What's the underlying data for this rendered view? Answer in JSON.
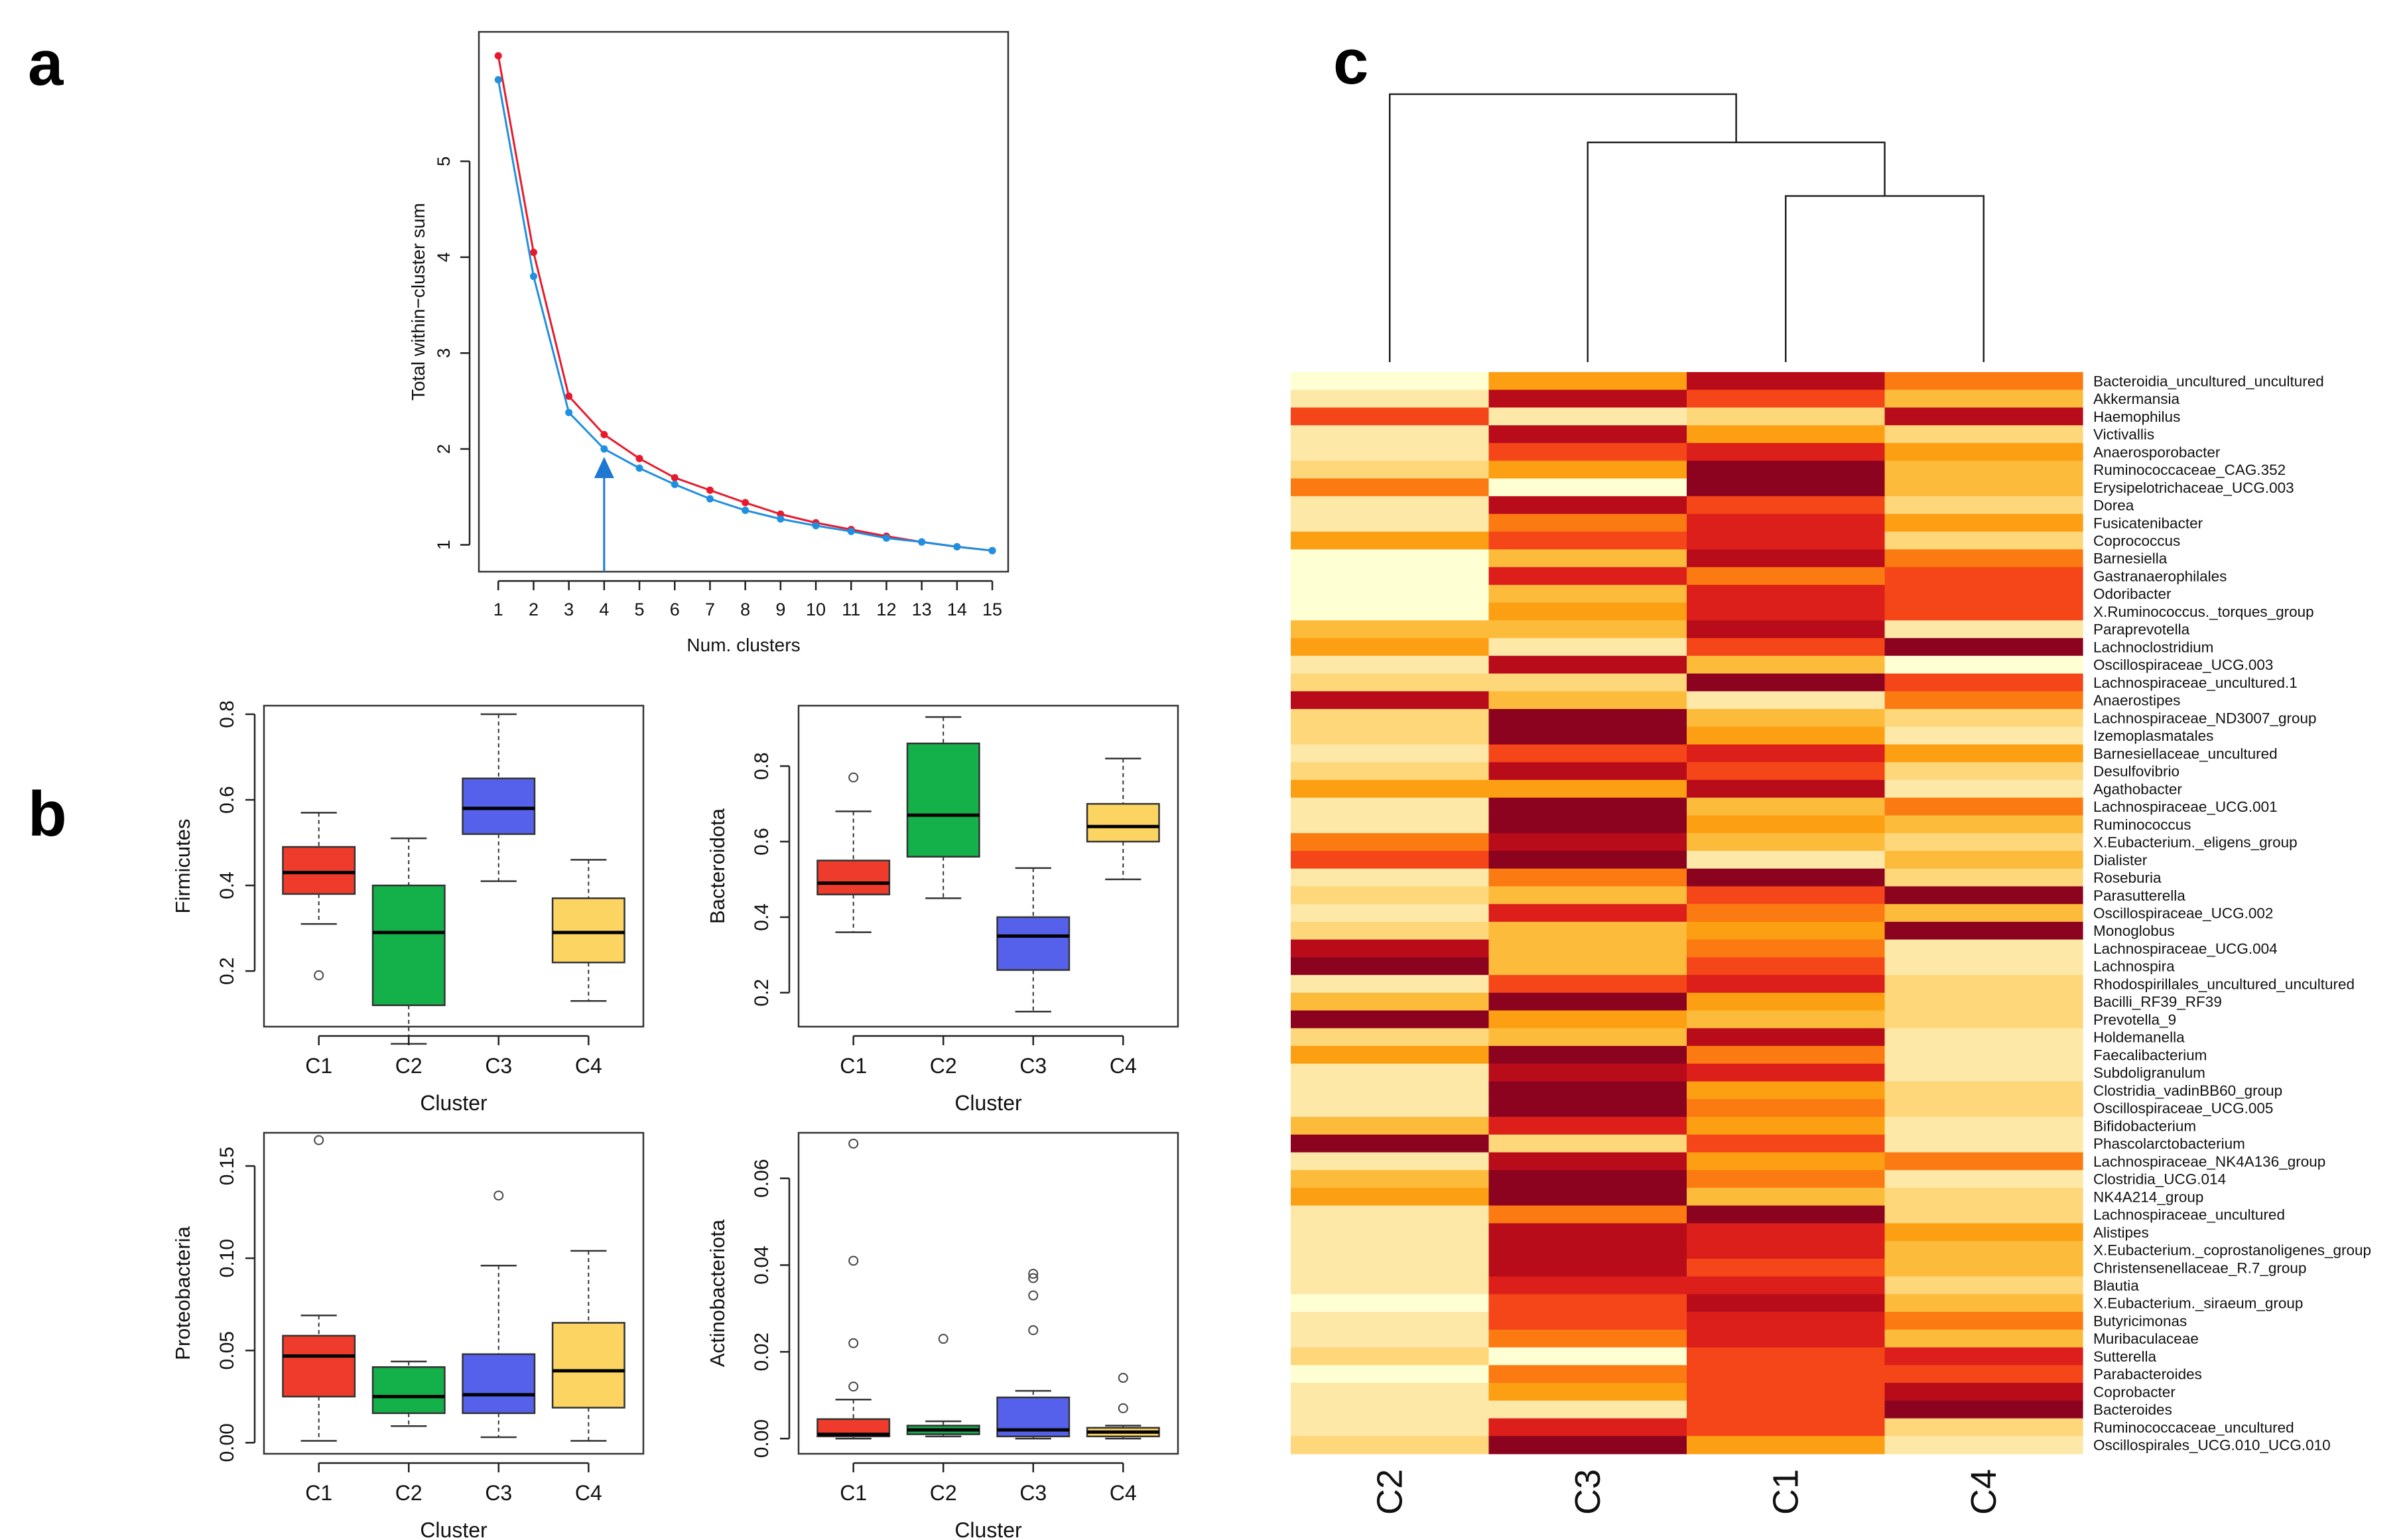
{
  "panel_labels": {
    "a": "a",
    "b": "b",
    "c": "c"
  },
  "colors": {
    "elbow_red": "#e8192c",
    "elbow_blue": "#1f8fe0",
    "arrow": "#1e78d2",
    "C1": "#ef3b2c",
    "C2": "#14b04a",
    "C3": "#5561ea",
    "C4": "#fcd462",
    "heat_scale": [
      "#ffffd4",
      "#fee8a8",
      "#fed77a",
      "#fdbb3c",
      "#fd9f12",
      "#fc7a12",
      "#f5461a",
      "#dc1f1a",
      "#b90c1a",
      "#8c0320"
    ]
  },
  "chart_data": [
    {
      "id": "a",
      "type": "line",
      "title": "",
      "xlabel": "Num. clusters",
      "ylabel": "Total within−cluster sum",
      "x": [
        1,
        2,
        3,
        4,
        5,
        6,
        7,
        8,
        9,
        10,
        11,
        12,
        13,
        14,
        15
      ],
      "xticks": [
        "1",
        "2",
        "3",
        "4",
        "5",
        "6",
        "7",
        "8",
        "9",
        "10",
        "11",
        "12",
        "13",
        "14",
        "15"
      ],
      "yticks": [
        1,
        2,
        3,
        4,
        5
      ],
      "xlim": [
        0.45,
        15.45
      ],
      "ylim": [
        0.72,
        6.35
      ],
      "annotation": {
        "type": "arrow",
        "x": 4
      },
      "series": [
        {
          "name": "red",
          "values": [
            6.1,
            4.05,
            2.55,
            2.15,
            1.9,
            1.7,
            1.57,
            1.44,
            1.32,
            1.23,
            1.16,
            1.09,
            1.03,
            0.98,
            0.94
          ]
        },
        {
          "name": "blue",
          "values": [
            5.85,
            3.8,
            2.38,
            2.0,
            1.8,
            1.63,
            1.48,
            1.36,
            1.27,
            1.2,
            1.14,
            1.07,
            1.03,
            0.98,
            0.94
          ]
        }
      ]
    },
    {
      "id": "b1",
      "type": "box",
      "ylabel": "Firmicutes",
      "xlabel": "Cluster",
      "categories": [
        "C1",
        "C2",
        "C3",
        "C4"
      ],
      "ylim": [
        0.07,
        0.82
      ],
      "yticks": [
        0.2,
        0.4,
        0.6,
        0.8
      ],
      "ytick_labels": [
        "0.2",
        "0.4",
        "0.6",
        "0.8"
      ],
      "boxes": [
        {
          "min": 0.31,
          "q1": 0.38,
          "median": 0.43,
          "q3": 0.49,
          "max": 0.57,
          "outliers": [
            0.19
          ]
        },
        {
          "min": 0.03,
          "q1": 0.12,
          "median": 0.29,
          "q3": 0.4,
          "max": 0.51,
          "outliers": []
        },
        {
          "min": 0.41,
          "q1": 0.52,
          "median": 0.58,
          "q3": 0.65,
          "max": 0.8,
          "outliers": []
        },
        {
          "min": 0.13,
          "q1": 0.22,
          "median": 0.29,
          "q3": 0.37,
          "max": 0.46,
          "outliers": []
        }
      ]
    },
    {
      "id": "b2",
      "type": "box",
      "ylabel": "Bacteroidota",
      "xlabel": "Cluster",
      "categories": [
        "C1",
        "C2",
        "C3",
        "C4"
      ],
      "ylim": [
        0.11,
        0.96
      ],
      "yticks": [
        0.2,
        0.4,
        0.6,
        0.8
      ],
      "ytick_labels": [
        "0.2",
        "0.4",
        "0.6",
        "0.8"
      ],
      "boxes": [
        {
          "min": 0.36,
          "q1": 0.46,
          "median": 0.49,
          "q3": 0.55,
          "max": 0.68,
          "outliers": [
            0.77
          ]
        },
        {
          "min": 0.45,
          "q1": 0.56,
          "median": 0.67,
          "q3": 0.86,
          "max": 0.93,
          "outliers": []
        },
        {
          "min": 0.15,
          "q1": 0.26,
          "median": 0.35,
          "q3": 0.4,
          "max": 0.53,
          "outliers": []
        },
        {
          "min": 0.5,
          "q1": 0.6,
          "median": 0.64,
          "q3": 0.7,
          "max": 0.82,
          "outliers": []
        }
      ]
    },
    {
      "id": "b3",
      "type": "box",
      "ylabel": "Proteobacteria",
      "xlabel": "Cluster",
      "categories": [
        "C1",
        "C2",
        "C3",
        "C4"
      ],
      "ylim": [
        -0.006,
        0.168
      ],
      "yticks": [
        0.0,
        0.05,
        0.1,
        0.15
      ],
      "ytick_labels": [
        "0.00",
        "0.05",
        "0.10",
        "0.15"
      ],
      "boxes": [
        {
          "min": 0.001,
          "q1": 0.025,
          "median": 0.047,
          "q3": 0.058,
          "max": 0.069,
          "outliers": [
            0.164
          ]
        },
        {
          "min": 0.009,
          "q1": 0.016,
          "median": 0.025,
          "q3": 0.041,
          "max": 0.044,
          "outliers": []
        },
        {
          "min": 0.003,
          "q1": 0.016,
          "median": 0.026,
          "q3": 0.048,
          "max": 0.096,
          "outliers": [
            0.134
          ]
        },
        {
          "min": 0.001,
          "q1": 0.019,
          "median": 0.039,
          "q3": 0.065,
          "max": 0.104,
          "outliers": []
        }
      ]
    },
    {
      "id": "b4",
      "type": "box",
      "ylabel": "Actinobacteriota",
      "xlabel": "Cluster",
      "categories": [
        "C1",
        "C2",
        "C3",
        "C4"
      ],
      "ylim": [
        -0.0035,
        0.0705
      ],
      "yticks": [
        0.0,
        0.02,
        0.04,
        0.06
      ],
      "ytick_labels": [
        "0.00",
        "0.02",
        "0.04",
        "0.06"
      ],
      "boxes": [
        {
          "min": 0.0,
          "q1": 0.0005,
          "median": 0.001,
          "q3": 0.0045,
          "max": 0.009,
          "outliers": [
            0.012,
            0.022,
            0.041,
            0.068
          ]
        },
        {
          "min": 0.0005,
          "q1": 0.001,
          "median": 0.002,
          "q3": 0.003,
          "max": 0.004,
          "outliers": [
            0.023
          ]
        },
        {
          "min": 0.0,
          "q1": 0.0005,
          "median": 0.002,
          "q3": 0.0095,
          "max": 0.011,
          "outliers": [
            0.025,
            0.033,
            0.037,
            0.038
          ]
        },
        {
          "min": 0.0,
          "q1": 0.0005,
          "median": 0.0015,
          "q3": 0.0025,
          "max": 0.003,
          "outliers": [
            0.007,
            0.014
          ]
        }
      ]
    },
    {
      "id": "c",
      "type": "heatmap",
      "columns": [
        "C2",
        "C3",
        "C1",
        "C4"
      ],
      "dendrogram": {
        "merges": [
          [
            "C1",
            "C4",
            0.62
          ],
          [
            "C3",
            "C1+C4",
            0.82
          ],
          [
            "C2",
            "C3+C1+C4",
            1.0
          ]
        ]
      },
      "rows": [
        {
          "label": "Bacteroidia_uncultured_uncultured",
          "values": [
            0,
            4,
            8,
            5
          ]
        },
        {
          "label": "Akkermansia",
          "values": [
            1,
            8,
            6,
            3
          ]
        },
        {
          "label": "Haemophilus",
          "values": [
            6,
            1,
            2,
            8
          ]
        },
        {
          "label": "Victivallis",
          "values": [
            1,
            8,
            4,
            2
          ]
        },
        {
          "label": "Anaerosporobacter",
          "values": [
            1,
            6,
            7,
            4
          ]
        },
        {
          "label": "Ruminococcaceae_CAG.352",
          "values": [
            2,
            4,
            9,
            3
          ]
        },
        {
          "label": "Erysipelotrichaceae_UCG.003",
          "values": [
            5,
            0,
            9,
            3
          ]
        },
        {
          "label": "Dorea",
          "values": [
            1,
            8,
            6,
            2
          ]
        },
        {
          "label": "Fusicatenibacter",
          "values": [
            1,
            5,
            7,
            4
          ]
        },
        {
          "label": "Coprococcus",
          "values": [
            4,
            6,
            7,
            2
          ]
        },
        {
          "label": "Barnesiella",
          "values": [
            0,
            3,
            8,
            5
          ]
        },
        {
          "label": "Gastranaerophilales",
          "values": [
            0,
            7,
            5,
            6
          ]
        },
        {
          "label": "Odoribacter",
          "values": [
            0,
            3,
            7,
            6
          ]
        },
        {
          "label": "X.Ruminococcus._torques_group",
          "values": [
            0,
            4,
            7,
            6
          ]
        },
        {
          "label": "Paraprevotella",
          "values": [
            3,
            3,
            8,
            1
          ]
        },
        {
          "label": "Lachnoclostridium",
          "values": [
            4,
            1,
            6,
            9
          ]
        },
        {
          "label": "Oscillospiraceae_UCG.003",
          "values": [
            1,
            8,
            3,
            0
          ]
        },
        {
          "label": "Lachnospiraceae_uncultured.1",
          "values": [
            2,
            2,
            9,
            6
          ]
        },
        {
          "label": "Anaerostipes",
          "values": [
            8,
            3,
            1,
            5
          ]
        },
        {
          "label": "Lachnospiraceae_ND3007_group",
          "values": [
            2,
            9,
            3,
            2
          ]
        },
        {
          "label": "Izemoplasmatales",
          "values": [
            2,
            9,
            4,
            1
          ]
        },
        {
          "label": "Barnesiellaceae_uncultured",
          "values": [
            1,
            6,
            7,
            4
          ]
        },
        {
          "label": "Desulfovibrio",
          "values": [
            2,
            8,
            6,
            2
          ]
        },
        {
          "label": "Agathobacter",
          "values": [
            4,
            4,
            8,
            1
          ]
        },
        {
          "label": "Lachnospiraceae_UCG.001",
          "values": [
            1,
            9,
            3,
            5
          ]
        },
        {
          "label": "Ruminococcus",
          "values": [
            1,
            9,
            4,
            3
          ]
        },
        {
          "label": "X.Eubacterium._eligens_group",
          "values": [
            5,
            8,
            3,
            2
          ]
        },
        {
          "label": "Dialister",
          "values": [
            6,
            9,
            1,
            3
          ]
        },
        {
          "label": "Roseburia",
          "values": [
            1,
            5,
            9,
            2
          ]
        },
        {
          "label": "Parasutterella",
          "values": [
            2,
            3,
            6,
            9
          ]
        },
        {
          "label": "Oscillospiraceae_UCG.002",
          "values": [
            1,
            7,
            5,
            3
          ]
        },
        {
          "label": "Monoglobus",
          "values": [
            2,
            3,
            4,
            9
          ]
        },
        {
          "label": "Lachnospiraceae_UCG.004",
          "values": [
            8,
            3,
            5,
            1
          ]
        },
        {
          "label": "Lachnospira",
          "values": [
            9,
            3,
            6,
            1
          ]
        },
        {
          "label": "Rhodospirillales_uncultured_uncultured",
          "values": [
            1,
            6,
            7,
            2
          ]
        },
        {
          "label": "Bacilli_RF39_RF39",
          "values": [
            3,
            9,
            4,
            2
          ]
        },
        {
          "label": "Prevotella_9",
          "values": [
            9,
            4,
            3,
            2
          ]
        },
        {
          "label": "Holdemanella",
          "values": [
            2,
            3,
            8,
            1
          ]
        },
        {
          "label": "Faecalibacterium",
          "values": [
            4,
            9,
            5,
            1
          ]
        },
        {
          "label": "Subdoligranulum",
          "values": [
            1,
            8,
            7,
            1
          ]
        },
        {
          "label": "Clostridia_vadinBB60_group",
          "values": [
            1,
            9,
            4,
            2
          ]
        },
        {
          "label": "Oscillospiraceae_UCG.005",
          "values": [
            1,
            9,
            5,
            2
          ]
        },
        {
          "label": "Bifidobacterium",
          "values": [
            3,
            7,
            4,
            1
          ]
        },
        {
          "label": "Phascolarctobacterium",
          "values": [
            9,
            2,
            6,
            1
          ]
        },
        {
          "label": "Lachnospiraceae_NK4A136_group",
          "values": [
            1,
            8,
            4,
            5
          ]
        },
        {
          "label": "Clostridia_UCG.014",
          "values": [
            3,
            9,
            5,
            1
          ]
        },
        {
          "label": "NK4A214_group",
          "values": [
            4,
            9,
            3,
            2
          ]
        },
        {
          "label": "Lachnospiraceae_uncultured",
          "values": [
            1,
            5,
            9,
            2
          ]
        },
        {
          "label": "Alistipes",
          "values": [
            1,
            8,
            7,
            4
          ]
        },
        {
          "label": "X.Eubacterium._coprostanoligenes_group",
          "values": [
            1,
            8,
            7,
            3
          ]
        },
        {
          "label": "Christensenellaceae_R.7_group",
          "values": [
            1,
            8,
            6,
            3
          ]
        },
        {
          "label": "Blautia",
          "values": [
            1,
            7,
            7,
            2
          ]
        },
        {
          "label": "X.Eubacterium._siraeum_group",
          "values": [
            0,
            6,
            8,
            3
          ]
        },
        {
          "label": "Butyricimonas",
          "values": [
            1,
            6,
            7,
            5
          ]
        },
        {
          "label": "Muribaculaceae",
          "values": [
            1,
            5,
            7,
            3
          ]
        },
        {
          "label": "Sutterella",
          "values": [
            2,
            0,
            6,
            7
          ]
        },
        {
          "label": "Parabacteroides",
          "values": [
            0,
            5,
            6,
            6
          ]
        },
        {
          "label": "Coprobacter",
          "values": [
            1,
            4,
            6,
            8
          ]
        },
        {
          "label": "Bacteroides",
          "values": [
            1,
            1,
            6,
            9
          ]
        },
        {
          "label": "Ruminococcaceae_uncultured",
          "values": [
            1,
            7,
            6,
            2
          ]
        },
        {
          "label": "Oscillospirales_UCG.010_UCG.010",
          "values": [
            2,
            9,
            4,
            1
          ]
        }
      ]
    }
  ]
}
